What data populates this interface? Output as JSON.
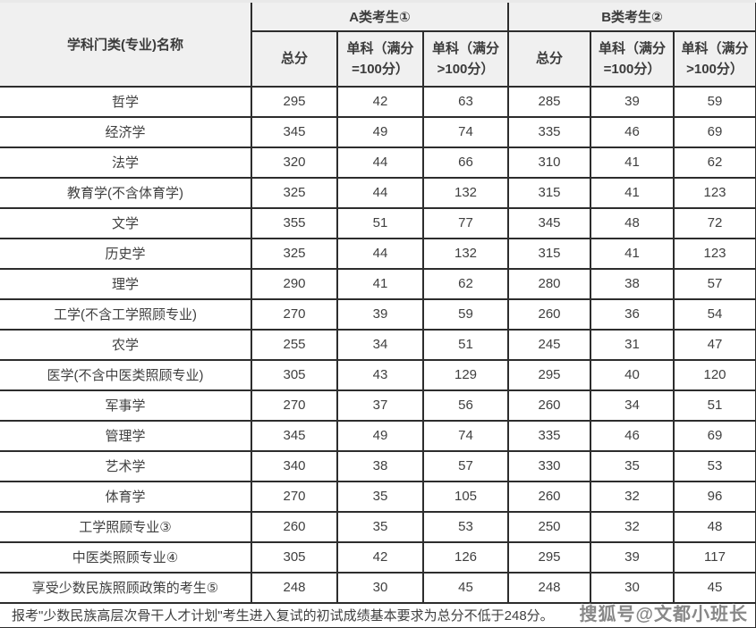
{
  "colors": {
    "header_bg": "#f0f0f0",
    "border": "#2d2d2d",
    "top_edge": "#e9e9e9",
    "text": "#404040",
    "watermark_text": "#787878"
  },
  "watermark": "搜狐号@文都小班长",
  "chart_data": {
    "type": "table",
    "name_header": "学科门类(专业)名称",
    "group_headers": [
      "A类考生①",
      "B类考生②"
    ],
    "sub_headers": [
      "总分",
      "单科（满分=100分）",
      "单科（满分>100分）"
    ],
    "columns": [
      "学科门类(专业)名称",
      "A类考生① 总分",
      "A类考生① 单科（满分=100分）",
      "A类考生① 单科（满分>100分）",
      "B类考生② 总分",
      "B类考生② 单科（满分=100分）",
      "B类考生② 单科（满分>100分）"
    ],
    "rows": [
      {
        "name": "哲学",
        "a": [
          295,
          42,
          63
        ],
        "b": [
          285,
          39,
          59
        ]
      },
      {
        "name": "经济学",
        "a": [
          345,
          49,
          74
        ],
        "b": [
          335,
          46,
          69
        ]
      },
      {
        "name": "法学",
        "a": [
          320,
          44,
          66
        ],
        "b": [
          310,
          41,
          62
        ]
      },
      {
        "name": "教育学(不含体育学)",
        "a": [
          325,
          44,
          132
        ],
        "b": [
          315,
          41,
          123
        ]
      },
      {
        "name": "文学",
        "a": [
          355,
          51,
          77
        ],
        "b": [
          345,
          48,
          72
        ]
      },
      {
        "name": "历史学",
        "a": [
          325,
          44,
          132
        ],
        "b": [
          315,
          41,
          123
        ]
      },
      {
        "name": "理学",
        "a": [
          290,
          41,
          62
        ],
        "b": [
          280,
          38,
          57
        ]
      },
      {
        "name": "工学(不含工学照顾专业)",
        "a": [
          270,
          39,
          59
        ],
        "b": [
          260,
          36,
          54
        ]
      },
      {
        "name": "农学",
        "a": [
          255,
          34,
          51
        ],
        "b": [
          245,
          31,
          47
        ]
      },
      {
        "name": "医学(不含中医类照顾专业)",
        "a": [
          305,
          43,
          129
        ],
        "b": [
          295,
          40,
          120
        ]
      },
      {
        "name": "军事学",
        "a": [
          270,
          37,
          56
        ],
        "b": [
          260,
          34,
          51
        ]
      },
      {
        "name": "管理学",
        "a": [
          345,
          49,
          74
        ],
        "b": [
          335,
          46,
          69
        ]
      },
      {
        "name": "艺术学",
        "a": [
          340,
          38,
          57
        ],
        "b": [
          330,
          35,
          53
        ]
      },
      {
        "name": "体育学",
        "a": [
          270,
          35,
          105
        ],
        "b": [
          260,
          32,
          96
        ]
      },
      {
        "name": "工学照顾专业③",
        "a": [
          260,
          35,
          53
        ],
        "b": [
          250,
          32,
          48
        ]
      },
      {
        "name": "中医类照顾专业④",
        "a": [
          305,
          42,
          126
        ],
        "b": [
          295,
          39,
          117
        ]
      },
      {
        "name": "享受少数民族照顾政策的考生⑤",
        "a": [
          248,
          30,
          45
        ],
        "b": [
          248,
          30,
          45
        ]
      }
    ],
    "footnote": "报考\"少数民族高层次骨干人才计划\"考生进入复试的初试成绩基本要求为总分不低于248分。"
  }
}
